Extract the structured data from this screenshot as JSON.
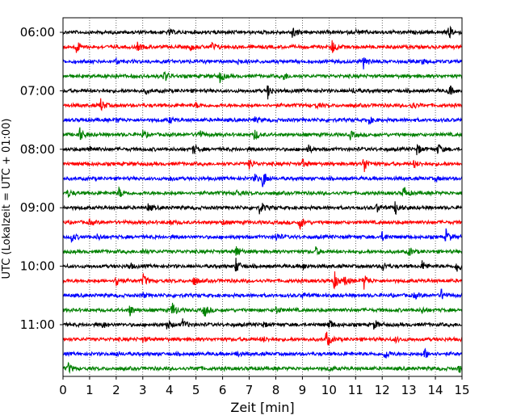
{
  "chart_data": {
    "type": "line",
    "subtype": "helicorder",
    "xlabel": "Zeit  [min]",
    "ylabel": "UTC (Lokalzeit = UTC + 01:00)",
    "xlim": [
      0,
      15
    ],
    "x_ticks": [
      0,
      1,
      2,
      3,
      4,
      5,
      6,
      7,
      8,
      9,
      10,
      11,
      12,
      13,
      14,
      15
    ],
    "x_tick_labels": [
      "0",
      "1",
      "2",
      "3",
      "4",
      "5",
      "6",
      "7",
      "8",
      "9",
      "10",
      "11",
      "12",
      "13",
      "14",
      "15"
    ],
    "y_tick_labels": [
      "06:00",
      "07:00",
      "08:00",
      "09:00",
      "10:00",
      "11:00"
    ],
    "row_minutes": 15,
    "grid": "vertical dotted at each minute",
    "trace_colors": [
      "#000000",
      "#ff0000",
      "#0000ff",
      "#008000"
    ],
    "rows": [
      {
        "start": "06:00",
        "color": "#000000",
        "events": [
          [
            8.6,
            1.0
          ],
          [
            14.5,
            0.9
          ],
          [
            4.0,
            0.3
          ],
          [
            11.0,
            0.3
          ]
        ]
      },
      {
        "start": "06:15",
        "color": "#ff0000",
        "events": [
          [
            0.5,
            0.9
          ],
          [
            10.1,
            1.1
          ],
          [
            5.6,
            0.6
          ],
          [
            2.8,
            0.5
          ],
          [
            4.8,
            0.4
          ]
        ]
      },
      {
        "start": "06:30",
        "color": "#0000ff",
        "events": [
          [
            11.3,
            1.0
          ],
          [
            6.5,
            0.6
          ],
          [
            2.0,
            0.3
          ],
          [
            13.5,
            0.3
          ]
        ]
      },
      {
        "start": "06:45",
        "color": "#008000",
        "events": [
          [
            3.8,
            0.8
          ],
          [
            5.9,
            0.8
          ],
          [
            8.3,
            0.5
          ],
          [
            1.7,
            0.3
          ]
        ]
      },
      {
        "start": "07:00",
        "color": "#000000",
        "events": [
          [
            7.7,
            1.0
          ],
          [
            14.5,
            0.8
          ],
          [
            3.1,
            0.3
          ],
          [
            10.9,
            0.3
          ]
        ]
      },
      {
        "start": "07:15",
        "color": "#ff0000",
        "events": [
          [
            1.4,
            1.0
          ],
          [
            13.1,
            0.6
          ],
          [
            5.0,
            0.3
          ],
          [
            9.5,
            0.3
          ]
        ]
      },
      {
        "start": "07:30",
        "color": "#0000ff",
        "events": [
          [
            11.5,
            0.5
          ],
          [
            4.0,
            0.4
          ],
          [
            7.2,
            0.3
          ],
          [
            2.0,
            0.3
          ]
        ]
      },
      {
        "start": "07:45",
        "color": "#008000",
        "events": [
          [
            0.6,
            1.1
          ],
          [
            5.1,
            0.7
          ],
          [
            7.2,
            0.8
          ],
          [
            3.0,
            0.5
          ],
          [
            10.8,
            0.5
          ]
        ]
      },
      {
        "start": "08:00",
        "color": "#000000",
        "events": [
          [
            1.0,
            0.6
          ],
          [
            4.9,
            0.7
          ],
          [
            9.2,
            0.6
          ],
          [
            13.3,
            0.8
          ],
          [
            14.1,
            0.7
          ]
        ]
      },
      {
        "start": "08:15",
        "color": "#ff0000",
        "events": [
          [
            11.3,
            1.4
          ],
          [
            7.0,
            0.6
          ],
          [
            9.0,
            0.6
          ],
          [
            13.2,
            0.5
          ]
        ]
      },
      {
        "start": "08:30",
        "color": "#0000ff",
        "events": [
          [
            7.5,
            1.3
          ],
          [
            7.2,
            0.6
          ],
          [
            14.0,
            0.3
          ],
          [
            4.0,
            0.3
          ]
        ]
      },
      {
        "start": "08:45",
        "color": "#008000",
        "events": [
          [
            12.8,
            1.0
          ],
          [
            2.1,
            0.7
          ],
          [
            0.2,
            0.5
          ],
          [
            6.5,
            0.4
          ]
        ]
      },
      {
        "start": "09:00",
        "color": "#000000",
        "events": [
          [
            7.4,
            1.0
          ],
          [
            12.5,
            1.0
          ],
          [
            3.2,
            0.5
          ],
          [
            11.8,
            0.6
          ]
        ]
      },
      {
        "start": "09:15",
        "color": "#ff0000",
        "events": [
          [
            8.9,
            0.9
          ],
          [
            4.0,
            0.4
          ],
          [
            6.0,
            0.3
          ],
          [
            1.0,
            0.3
          ]
        ]
      },
      {
        "start": "09:30",
        "color": "#0000ff",
        "events": [
          [
            14.4,
            1.0
          ],
          [
            0.3,
            0.7
          ],
          [
            12.0,
            0.6
          ],
          [
            8.0,
            0.6
          ],
          [
            1.3,
            0.4
          ]
        ]
      },
      {
        "start": "09:45",
        "color": "#008000",
        "events": [
          [
            6.5,
            0.9
          ],
          [
            9.5,
            0.5
          ],
          [
            13.0,
            0.6
          ],
          [
            3.0,
            0.3
          ]
        ]
      },
      {
        "start": "10:00",
        "color": "#000000",
        "events": [
          [
            6.5,
            1.0
          ],
          [
            14.8,
            1.1
          ],
          [
            13.5,
            0.7
          ],
          [
            12.0,
            0.7
          ],
          [
            9.0,
            0.5
          ],
          [
            2.5,
            0.4
          ]
        ]
      },
      {
        "start": "10:15",
        "color": "#ff0000",
        "events": [
          [
            10.2,
            1.2
          ],
          [
            11.3,
            1.2
          ],
          [
            2.0,
            0.9
          ],
          [
            3.0,
            0.9
          ],
          [
            4.9,
            0.7
          ],
          [
            10.6,
            0.7
          ]
        ]
      },
      {
        "start": "10:30",
        "color": "#0000ff",
        "events": [
          [
            14.2,
            0.9
          ],
          [
            13.2,
            0.4
          ],
          [
            9.0,
            0.4
          ],
          [
            3.0,
            0.3
          ]
        ]
      },
      {
        "start": "10:45",
        "color": "#008000",
        "events": [
          [
            4.1,
            1.2
          ],
          [
            5.3,
            1.0
          ],
          [
            2.5,
            0.8
          ],
          [
            8.0,
            0.5
          ],
          [
            13.5,
            0.4
          ]
        ]
      },
      {
        "start": "11:00",
        "color": "#000000",
        "events": [
          [
            3.9,
            0.7
          ],
          [
            4.5,
            0.7
          ],
          [
            10.0,
            0.8
          ],
          [
            11.7,
            0.7
          ],
          [
            1.5,
            0.4
          ],
          [
            7.5,
            0.4
          ]
        ]
      },
      {
        "start": "11:15",
        "color": "#ff0000",
        "events": [
          [
            9.9,
            1.2
          ],
          [
            7.5,
            0.4
          ],
          [
            3.0,
            0.3
          ],
          [
            12.5,
            0.3
          ]
        ]
      },
      {
        "start": "11:30",
        "color": "#0000ff",
        "events": [
          [
            12.1,
            0.8
          ],
          [
            13.6,
            0.7
          ],
          [
            6.5,
            0.4
          ],
          [
            2.0,
            0.3
          ]
        ]
      },
      {
        "start": "11:45",
        "color": "#008000",
        "events": [
          [
            0.2,
            0.7
          ],
          [
            14.9,
            0.6
          ],
          [
            5.0,
            0.3
          ],
          [
            10.0,
            0.3
          ]
        ]
      }
    ]
  }
}
